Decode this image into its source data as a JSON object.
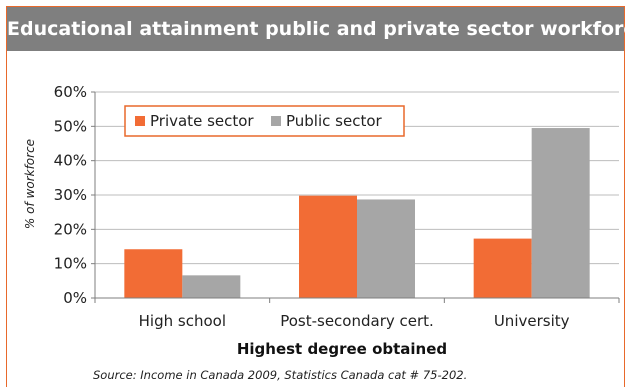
{
  "header": {
    "title": "Educational attainment public and private sector workforce"
  },
  "footer": {
    "source": "Source: Income in Canada 2009, Statistics Canada cat # 75-202."
  },
  "chart_data": {
    "type": "bar",
    "title": "Educational attainment public and private sector workforce",
    "xlabel": "Highest degree obtained",
    "ylabel": "% of workforce",
    "categories": [
      "High school",
      "Post-secondary cert.",
      "University"
    ],
    "series": [
      {
        "name": "Private sector",
        "color": "#f26c35",
        "values": [
          14.2,
          29.8,
          17.3
        ]
      },
      {
        "name": "Public sector",
        "color": "#a6a6a6",
        "values": [
          6.6,
          28.7,
          49.5
        ]
      }
    ],
    "ylim": [
      0,
      60
    ],
    "yticks": [
      0,
      10,
      20,
      30,
      40,
      50,
      60
    ],
    "ytick_labels": [
      "0%",
      "10%",
      "20%",
      "30%",
      "40%",
      "50%",
      "60%"
    ],
    "legend_placement": "top-left",
    "legend_border_color": "#e8692b",
    "grid": true
  }
}
